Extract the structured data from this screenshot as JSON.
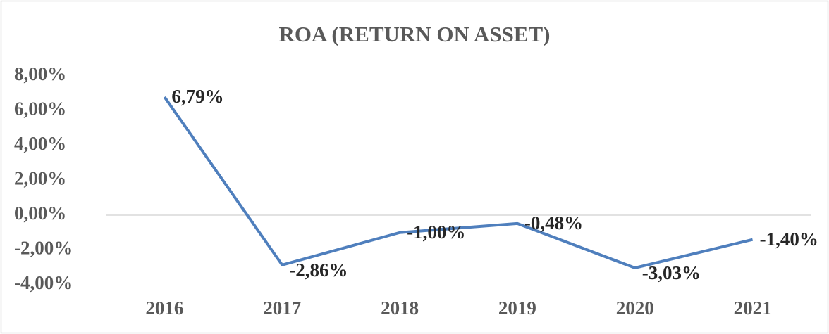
{
  "chart_data": {
    "type": "line",
    "title": "ROA (RETURN ON ASSET)",
    "categories": [
      "2016",
      "2017",
      "2018",
      "2019",
      "2020",
      "2021"
    ],
    "series": [
      {
        "name": "ROA",
        "color": "#4f7fbd",
        "values": [
          6.79,
          -2.86,
          -1.0,
          -0.48,
          -3.03,
          -1.4
        ],
        "value_labels": [
          "6,79%",
          "-2,86%",
          "-1,00%",
          "-0,48%",
          "-3,03%",
          "-1,40%"
        ]
      }
    ],
    "ylim": [
      -4,
      8
    ],
    "yticks": [
      {
        "value": -4,
        "label": "-4,00%"
      },
      {
        "value": -2,
        "label": "-2,00%"
      },
      {
        "value": 0,
        "label": "0,00%"
      },
      {
        "value": 2,
        "label": "2,00%"
      },
      {
        "value": 4,
        "label": "4,00%"
      },
      {
        "value": 6,
        "label": "6,00%"
      },
      {
        "value": 8,
        "label": "8,00%"
      }
    ],
    "grid": false
  }
}
